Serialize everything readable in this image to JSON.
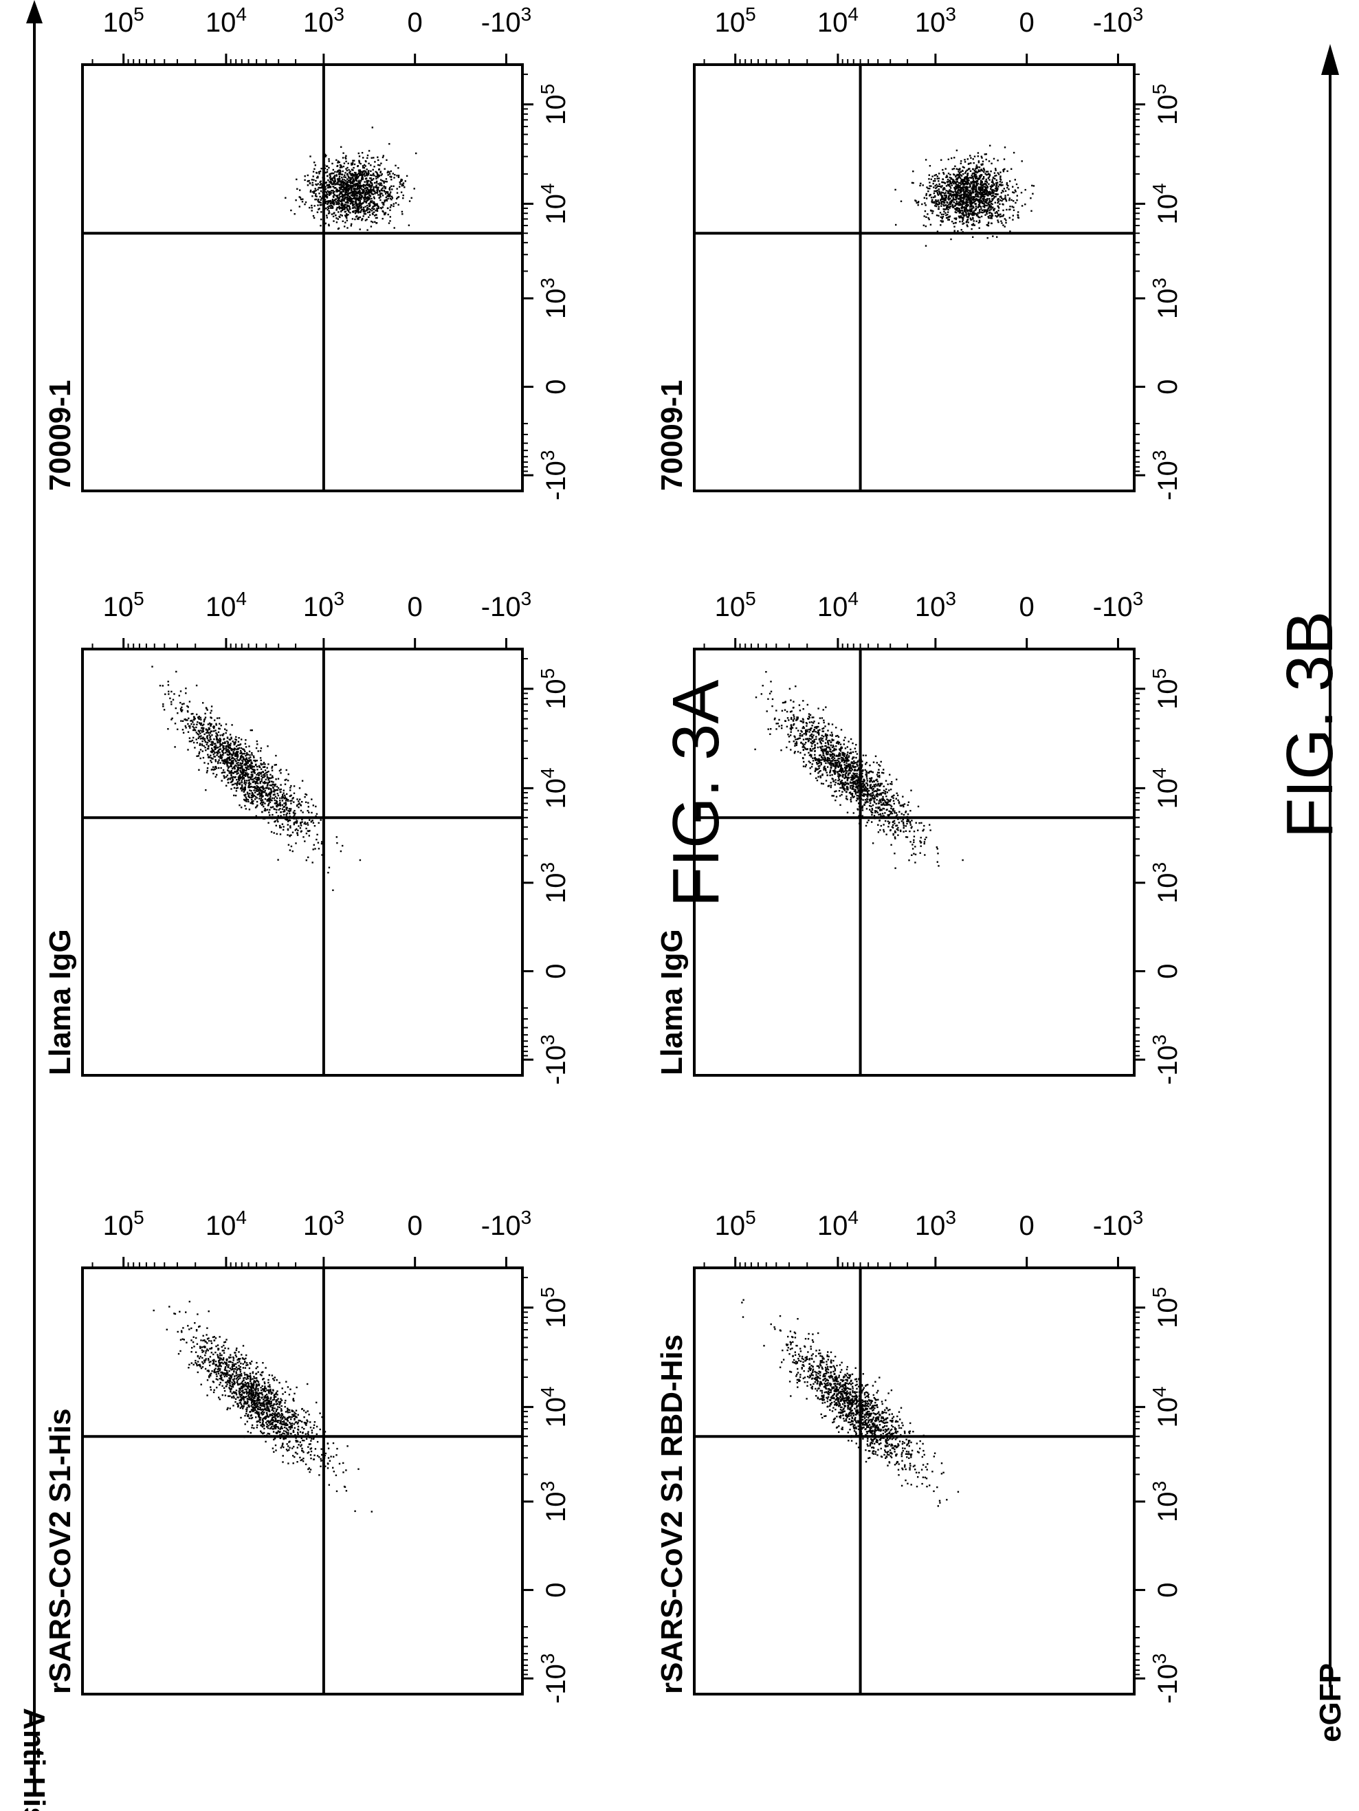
{
  "figure": {
    "captions": [
      "FIG. 3A",
      "FIG. 3B"
    ],
    "x_axis_label": "eGFP",
    "y_axis_label": "Anti-His"
  },
  "chart_data": [
    {
      "type": "scatter",
      "figure": "FIG. 3A",
      "title": "rSARS-CoV2 S1-His",
      "x_scale": "biexponential",
      "y_scale": "biexponential",
      "x_ticks": [
        "-10^3",
        "0",
        "10^3",
        "10^4",
        "10^5"
      ],
      "y_ticks": [
        "-10^3",
        "0",
        "10^3",
        "10^4",
        "10^5"
      ],
      "xlim": [
        -1500,
        250000
      ],
      "ylim": [
        -1500,
        250000
      ],
      "quadrant_gate": {
        "x": 5000,
        "y": 1000
      },
      "populations": [
        {
          "center": {
            "x": 12000,
            "y": 5000
          },
          "spread": "diagonal",
          "description": "main diagonal population"
        }
      ]
    },
    {
      "type": "scatter",
      "figure": "FIG. 3A",
      "title": "Llama IgG",
      "x_scale": "biexponential",
      "y_scale": "biexponential",
      "x_ticks": [
        "-10^3",
        "0",
        "10^3",
        "10^4",
        "10^5"
      ],
      "y_ticks": [
        "-10^3",
        "0",
        "10^3",
        "10^4",
        "10^5"
      ],
      "xlim": [
        -1500,
        250000
      ],
      "ylim": [
        -1500,
        250000
      ],
      "quadrant_gate": {
        "x": 5000,
        "y": 1000
      },
      "populations": [
        {
          "center": {
            "x": 14000,
            "y": 6500
          },
          "spread": "diagonal",
          "description": "main diagonal population"
        }
      ]
    },
    {
      "type": "scatter",
      "figure": "FIG. 3A",
      "title": "70009-1",
      "x_scale": "biexponential",
      "y_scale": "biexponential",
      "x_ticks": [
        "-10^3",
        "0",
        "10^3",
        "10^4",
        "10^5"
      ],
      "y_ticks": [
        "-10^3",
        "0",
        "10^3",
        "10^4",
        "10^5"
      ],
      "xlim": [
        -1500,
        250000
      ],
      "ylim": [
        -1500,
        250000
      ],
      "quadrant_gate": {
        "x": 5000,
        "y": 1000
      },
      "populations": [
        {
          "center": {
            "x": 13000,
            "y": 450
          },
          "spread": "round",
          "description": "population near baseline"
        }
      ]
    },
    {
      "type": "scatter",
      "figure": "FIG. 3B",
      "title": "rSARS-CoV2 S1 RBD-His",
      "x_scale": "biexponential",
      "y_scale": "biexponential",
      "x_ticks": [
        "-10^3",
        "0",
        "10^3",
        "10^4",
        "10^5"
      ],
      "y_ticks": [
        "-10^3",
        "0",
        "10^3",
        "10^4",
        "10^5"
      ],
      "xlim": [
        -1500,
        250000
      ],
      "ylim": [
        -1500,
        250000
      ],
      "quadrant_gate": {
        "x": 5000,
        "y": 6000
      },
      "populations": [
        {
          "center": {
            "x": 10000,
            "y": 7000
          },
          "spread": "diagonal",
          "description": "main diagonal population"
        }
      ]
    },
    {
      "type": "scatter",
      "figure": "FIG. 3B",
      "title": "Llama IgG",
      "x_scale": "biexponential",
      "y_scale": "biexponential",
      "x_ticks": [
        "-10^3",
        "0",
        "10^3",
        "10^4",
        "10^5"
      ],
      "y_ticks": [
        "-10^3",
        "0",
        "10^3",
        "10^4",
        "10^5"
      ],
      "xlim": [
        -1500,
        250000
      ],
      "ylim": [
        -1500,
        250000
      ],
      "quadrant_gate": {
        "x": 5000,
        "y": 6000
      },
      "populations": [
        {
          "center": {
            "x": 14000,
            "y": 8000
          },
          "spread": "diagonal",
          "description": "main diagonal population"
        }
      ]
    },
    {
      "type": "scatter",
      "figure": "FIG. 3B",
      "title": "70009-1",
      "x_scale": "biexponential",
      "y_scale": "biexponential",
      "x_ticks": [
        "-10^3",
        "0",
        "10^3",
        "10^4",
        "10^5"
      ],
      "y_ticks": [
        "-10^3",
        "0",
        "10^3",
        "10^4",
        "10^5"
      ],
      "xlim": [
        -1500,
        250000
      ],
      "ylim": [
        -1500,
        250000
      ],
      "quadrant_gate": {
        "x": 5000,
        "y": 6000
      },
      "populations": [
        {
          "center": {
            "x": 12000,
            "y": 400
          },
          "spread": "round",
          "description": "population near baseline"
        }
      ]
    }
  ]
}
